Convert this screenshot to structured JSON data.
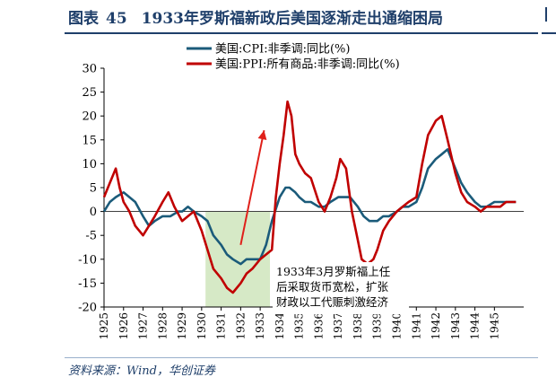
{
  "title": {
    "prefix": "图表",
    "number": "45",
    "text": "1933年罗斯福新政后美国逐渐走出通缩困局"
  },
  "source": "资料来源：Wind，华创证券",
  "chart_data": {
    "type": "line",
    "ylim": [
      -20,
      30
    ],
    "yticks": [
      30,
      25,
      20,
      15,
      10,
      5,
      0,
      -5,
      -10,
      -15,
      -20
    ],
    "xlim": [
      1925,
      1946.5
    ],
    "xticks": [
      "1925",
      "1926",
      "1927",
      "1928",
      "1929",
      "1930",
      "1931",
      "1932",
      "1933",
      "1934",
      "1935",
      "1936",
      "1937",
      "1938",
      "1939",
      "1940",
      "1941",
      "1942",
      "1943",
      "1944",
      "1945"
    ],
    "legend_position": "top-center",
    "series": [
      {
        "name": "美国:CPI:非季调:同比(%)",
        "color": "#1b5b7a",
        "x": [
          1925.0,
          1925.3,
          1925.6,
          1926.0,
          1926.3,
          1926.6,
          1927.0,
          1927.3,
          1927.6,
          1928.0,
          1928.4,
          1928.8,
          1929.0,
          1929.3,
          1929.6,
          1930.0,
          1930.3,
          1930.6,
          1931.0,
          1931.3,
          1931.6,
          1932.0,
          1932.3,
          1932.6,
          1933.0,
          1933.3,
          1933.6,
          1934.0,
          1934.3,
          1934.5,
          1934.8,
          1935.0,
          1935.3,
          1935.6,
          1936.0,
          1936.3,
          1936.6,
          1937.0,
          1937.3,
          1937.6,
          1938.0,
          1938.3,
          1938.6,
          1939.0,
          1939.3,
          1939.6,
          1940.0,
          1940.3,
          1940.6,
          1941.0,
          1941.3,
          1941.6,
          1942.0,
          1942.3,
          1942.6,
          1943.0,
          1943.3,
          1943.6,
          1944.0,
          1944.3,
          1944.6,
          1945.0,
          1945.3,
          1945.6,
          1946.1
        ],
        "y": [
          0,
          2,
          3,
          4,
          3,
          2,
          -1,
          -3,
          -2,
          -1,
          -1,
          0,
          0,
          1,
          0,
          -1,
          -2,
          -5,
          -7,
          -9,
          -10,
          -11,
          -10,
          -10,
          -10,
          -7,
          -2,
          3,
          5,
          5,
          4,
          3,
          2,
          2,
          1,
          1,
          2,
          3,
          3,
          3,
          1,
          -1,
          -2,
          -2,
          -1,
          -1,
          0,
          1,
          1,
          2,
          5,
          9,
          11,
          12,
          13,
          9,
          6,
          4,
          2,
          1,
          1,
          2,
          2,
          2,
          2
        ]
      },
      {
        "name": "美国:PPI:所有商品:非季调:同比(%)",
        "color": "#c00000",
        "x": [
          1925.0,
          1925.3,
          1925.6,
          1925.8,
          1926.0,
          1926.3,
          1926.6,
          1927.0,
          1927.3,
          1927.6,
          1928.0,
          1928.3,
          1928.6,
          1929.0,
          1929.3,
          1929.6,
          1930.0,
          1930.3,
          1930.6,
          1931.0,
          1931.3,
          1931.6,
          1932.0,
          1932.3,
          1932.6,
          1933.0,
          1933.3,
          1933.6,
          1933.8,
          1934.0,
          1934.2,
          1934.4,
          1934.6,
          1934.8,
          1935.0,
          1935.3,
          1935.6,
          1936.0,
          1936.3,
          1936.6,
          1936.9,
          1937.1,
          1937.4,
          1937.7,
          1938.0,
          1938.2,
          1938.5,
          1938.8,
          1939.0,
          1939.3,
          1939.6,
          1940.0,
          1940.3,
          1940.6,
          1941.0,
          1941.3,
          1941.6,
          1942.0,
          1942.3,
          1942.6,
          1943.0,
          1943.3,
          1943.6,
          1944.0,
          1944.3,
          1944.6,
          1945.0,
          1945.3,
          1945.6,
          1946.1
        ],
        "y": [
          3,
          6,
          9,
          5,
          2,
          0,
          -3,
          -5,
          -3,
          -1,
          2,
          4,
          1,
          -2,
          -1,
          0,
          -4,
          -8,
          -12,
          -14,
          -16,
          -17,
          -15,
          -13,
          -12,
          -10,
          -9,
          -8,
          3,
          10,
          16,
          23,
          20,
          12,
          10,
          8,
          7,
          2,
          0,
          3,
          7,
          11,
          9,
          0,
          -6,
          -10,
          -11,
          -10,
          -8,
          -4,
          -2,
          0,
          1,
          2,
          3,
          10,
          16,
          19,
          20,
          15,
          8,
          4,
          2,
          1,
          0,
          1,
          1,
          1,
          2,
          2
        ]
      }
    ],
    "shaded_region": {
      "x": [
        1930.2,
        1933.5
      ]
    },
    "annotation": {
      "lines": [
        "1933年3月罗斯福上任",
        "后采取货币宽松，扩张",
        "财政以工代赈刺激经济"
      ]
    },
    "arrow": {
      "from": {
        "x": 1932.0,
        "y": -7
      },
      "to": {
        "x": 1933.2,
        "y": 17
      }
    }
  }
}
